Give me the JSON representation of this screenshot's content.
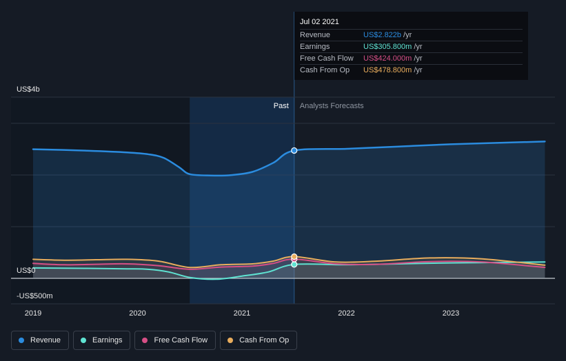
{
  "chart_data": {
    "type": "line",
    "y_axis_labels": [
      "US$4b",
      "US$0",
      "-US$500m"
    ],
    "x": [
      "2019",
      "2020",
      "2021",
      "2022",
      "2023"
    ],
    "xlim": [
      2019.0,
      2023.9
    ],
    "ylim": [
      -0.5,
      4.0
    ],
    "y_unit": "US$ billions",
    "grid": true,
    "regions": {
      "past_label": "Past",
      "forecast_label": "Analysts Forecasts",
      "split_x": 2021.5,
      "highlight_from_x": 2020.5
    },
    "series": [
      {
        "name": "Revenue",
        "color": "#2b8cdf",
        "points": [
          [
            2019.0,
            2.85
          ],
          [
            2019.5,
            2.82
          ],
          [
            2019.9,
            2.78
          ],
          [
            2020.1,
            2.74
          ],
          [
            2020.25,
            2.66
          ],
          [
            2020.4,
            2.45
          ],
          [
            2020.5,
            2.3
          ],
          [
            2020.7,
            2.27
          ],
          [
            2020.9,
            2.28
          ],
          [
            2021.1,
            2.35
          ],
          [
            2021.3,
            2.55
          ],
          [
            2021.5,
            2.822
          ],
          [
            2022.0,
            2.86
          ],
          [
            2022.5,
            2.91
          ],
          [
            2023.0,
            2.96
          ],
          [
            2023.9,
            3.02
          ]
        ]
      },
      {
        "name": "Earnings",
        "color": "#5fe3d2",
        "points": [
          [
            2019.0,
            0.23
          ],
          [
            2019.5,
            0.22
          ],
          [
            2019.9,
            0.21
          ],
          [
            2020.1,
            0.2
          ],
          [
            2020.3,
            0.14
          ],
          [
            2020.5,
            0.02
          ],
          [
            2020.75,
            -0.02
          ],
          [
            2021.0,
            0.05
          ],
          [
            2021.25,
            0.14
          ],
          [
            2021.5,
            0.306
          ],
          [
            2022.0,
            0.3
          ],
          [
            2022.5,
            0.32
          ],
          [
            2023.0,
            0.34
          ],
          [
            2023.9,
            0.36
          ]
        ]
      },
      {
        "name": "Free Cash Flow",
        "color": "#d64f86",
        "points": [
          [
            2019.0,
            0.33
          ],
          [
            2019.3,
            0.3
          ],
          [
            2019.6,
            0.31
          ],
          [
            2019.9,
            0.32
          ],
          [
            2020.2,
            0.28
          ],
          [
            2020.5,
            0.2
          ],
          [
            2020.8,
            0.25
          ],
          [
            2021.1,
            0.27
          ],
          [
            2021.3,
            0.33
          ],
          [
            2021.5,
            0.424
          ],
          [
            2021.9,
            0.32
          ],
          [
            2022.3,
            0.31
          ],
          [
            2022.8,
            0.37
          ],
          [
            2023.3,
            0.36
          ],
          [
            2023.9,
            0.24
          ]
        ]
      },
      {
        "name": "Cash From Op",
        "color": "#e9ad5d",
        "points": [
          [
            2019.0,
            0.42
          ],
          [
            2019.3,
            0.4
          ],
          [
            2019.6,
            0.41
          ],
          [
            2019.9,
            0.42
          ],
          [
            2020.2,
            0.38
          ],
          [
            2020.5,
            0.24
          ],
          [
            2020.8,
            0.3
          ],
          [
            2021.1,
            0.32
          ],
          [
            2021.3,
            0.38
          ],
          [
            2021.5,
            0.479
          ],
          [
            2021.9,
            0.36
          ],
          [
            2022.3,
            0.38
          ],
          [
            2022.8,
            0.45
          ],
          [
            2023.3,
            0.43
          ],
          [
            2023.9,
            0.29
          ]
        ]
      }
    ]
  },
  "tooltip": {
    "date": "Jul 02 2021",
    "rows": [
      {
        "name": "Revenue",
        "value": "US$2.822b",
        "unit": "/yr",
        "color": "#2b8cdf"
      },
      {
        "name": "Earnings",
        "value": "US$305.800m",
        "unit": "/yr",
        "color": "#5fe3d2"
      },
      {
        "name": "Free Cash Flow",
        "value": "US$424.000m",
        "unit": "/yr",
        "color": "#d64f86"
      },
      {
        "name": "Cash From Op",
        "value": "US$478.800m",
        "unit": "/yr",
        "color": "#e9ad5d"
      }
    ]
  },
  "legend": [
    {
      "label": "Revenue",
      "color": "#2b8cdf"
    },
    {
      "label": "Earnings",
      "color": "#5fe3d2"
    },
    {
      "label": "Free Cash Flow",
      "color": "#d64f86"
    },
    {
      "label": "Cash From Op",
      "color": "#e9ad5d"
    }
  ]
}
